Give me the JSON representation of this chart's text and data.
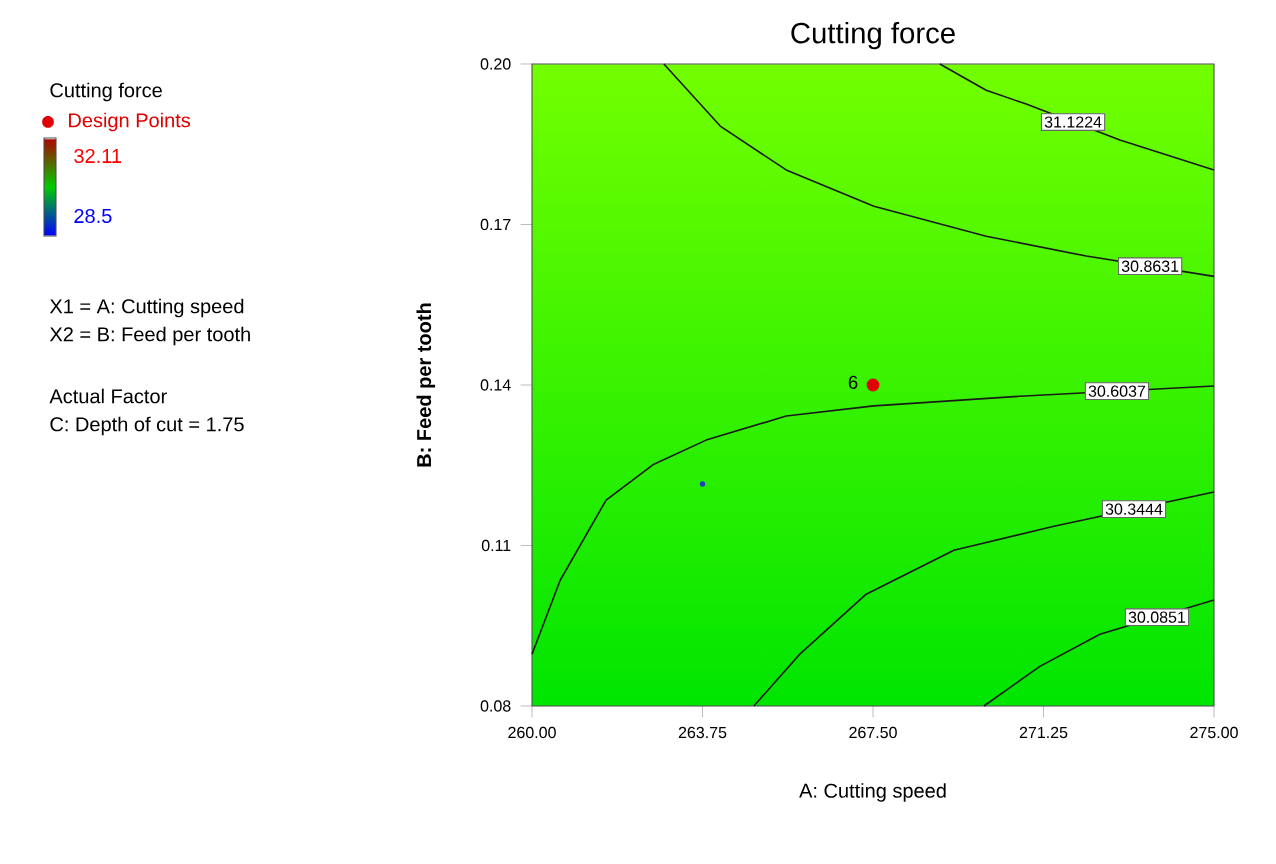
{
  "chart_data": {
    "type": "line",
    "title": "Cutting force",
    "xlabel": "A: Cutting speed",
    "ylabel": "B: Feed per tooth",
    "legend_title": "Cutting force",
    "legend": "left",
    "line_style": "solid",
    "xlim": [
      260,
      275
    ],
    "ylim": [
      0.08,
      0.2
    ],
    "xticks": [
      {
        "value": 260,
        "label": "260.00"
      },
      {
        "value": 263.75,
        "label": "263.75"
      },
      {
        "value": 267.5,
        "label": "267.50"
      },
      {
        "value": 271.25,
        "label": "271.25"
      },
      {
        "value": 275,
        "label": "275.00"
      }
    ],
    "yticks": [
      {
        "value": 0.08,
        "label": "0.08"
      },
      {
        "value": 0.11,
        "label": "0.11"
      },
      {
        "value": 0.14,
        "label": "0.14"
      },
      {
        "value": 0.17,
        "label": "0.17"
      },
      {
        "value": 0.2,
        "label": "0.20"
      }
    ],
    "series": [
      {
        "name": "31.1224",
        "color": "#1a1a1a",
        "x": [
          268.97,
          269.99,
          270.87,
          272.93,
          275
        ],
        "values": [
          0.2,
          0.1951,
          0.1925,
          0.1858,
          0.1802
        ]
      },
      {
        "name": "30.8631",
        "color": "#1a1a1a",
        "x": [
          262.9,
          264.14,
          265.59,
          267.52,
          269.99,
          272.19,
          275
        ],
        "values": [
          0.2,
          0.1884,
          0.1802,
          0.1734,
          0.1678,
          0.1641,
          0.1603
        ]
      },
      {
        "name": "30.6037",
        "color": "#1a1a1a",
        "x": [
          260,
          260.62,
          261.63,
          262.68,
          263.83,
          265.59,
          267.52,
          270.73,
          275
        ],
        "values": [
          0.0897,
          0.1035,
          0.1185,
          0.1252,
          0.1297,
          0.1342,
          0.1361,
          0.1379,
          0.1398
        ]
      },
      {
        "name": "30.3444",
        "color": "#1a1a1a",
        "x": [
          264.88,
          265.89,
          267.35,
          269.28,
          271.48,
          275
        ],
        "values": [
          0.08,
          0.0897,
          0.1009,
          0.1091,
          0.1136,
          0.12
        ]
      },
      {
        "name": "30.0851",
        "color": "#1a1a1a",
        "x": [
          269.94,
          271.17,
          272.49,
          275
        ],
        "values": [
          0.08,
          0.0874,
          0.0934,
          0.0998
        ]
      },
      {
        "name": "Design Points",
        "type": "scatter",
        "marker": "circle",
        "color": "#e00000",
        "x": [
          267.5
        ],
        "values": [
          0.14
        ]
      },
      {
        "type": "scatter",
        "marker": "circle",
        "color": "#1f3fbf",
        "x": [
          263.75
        ],
        "values": [
          0.1215
        ]
      }
    ],
    "annotations": [
      "32.11",
      "28.5",
      "X1 = A: Cutting speed",
      "X2 = B: Feed per tooth",
      "Actual Factor",
      "C: Depth of cut = 1.75",
      {
        "text": "6",
        "x": 267.5,
        "y": 0.14
      }
    ]
  }
}
